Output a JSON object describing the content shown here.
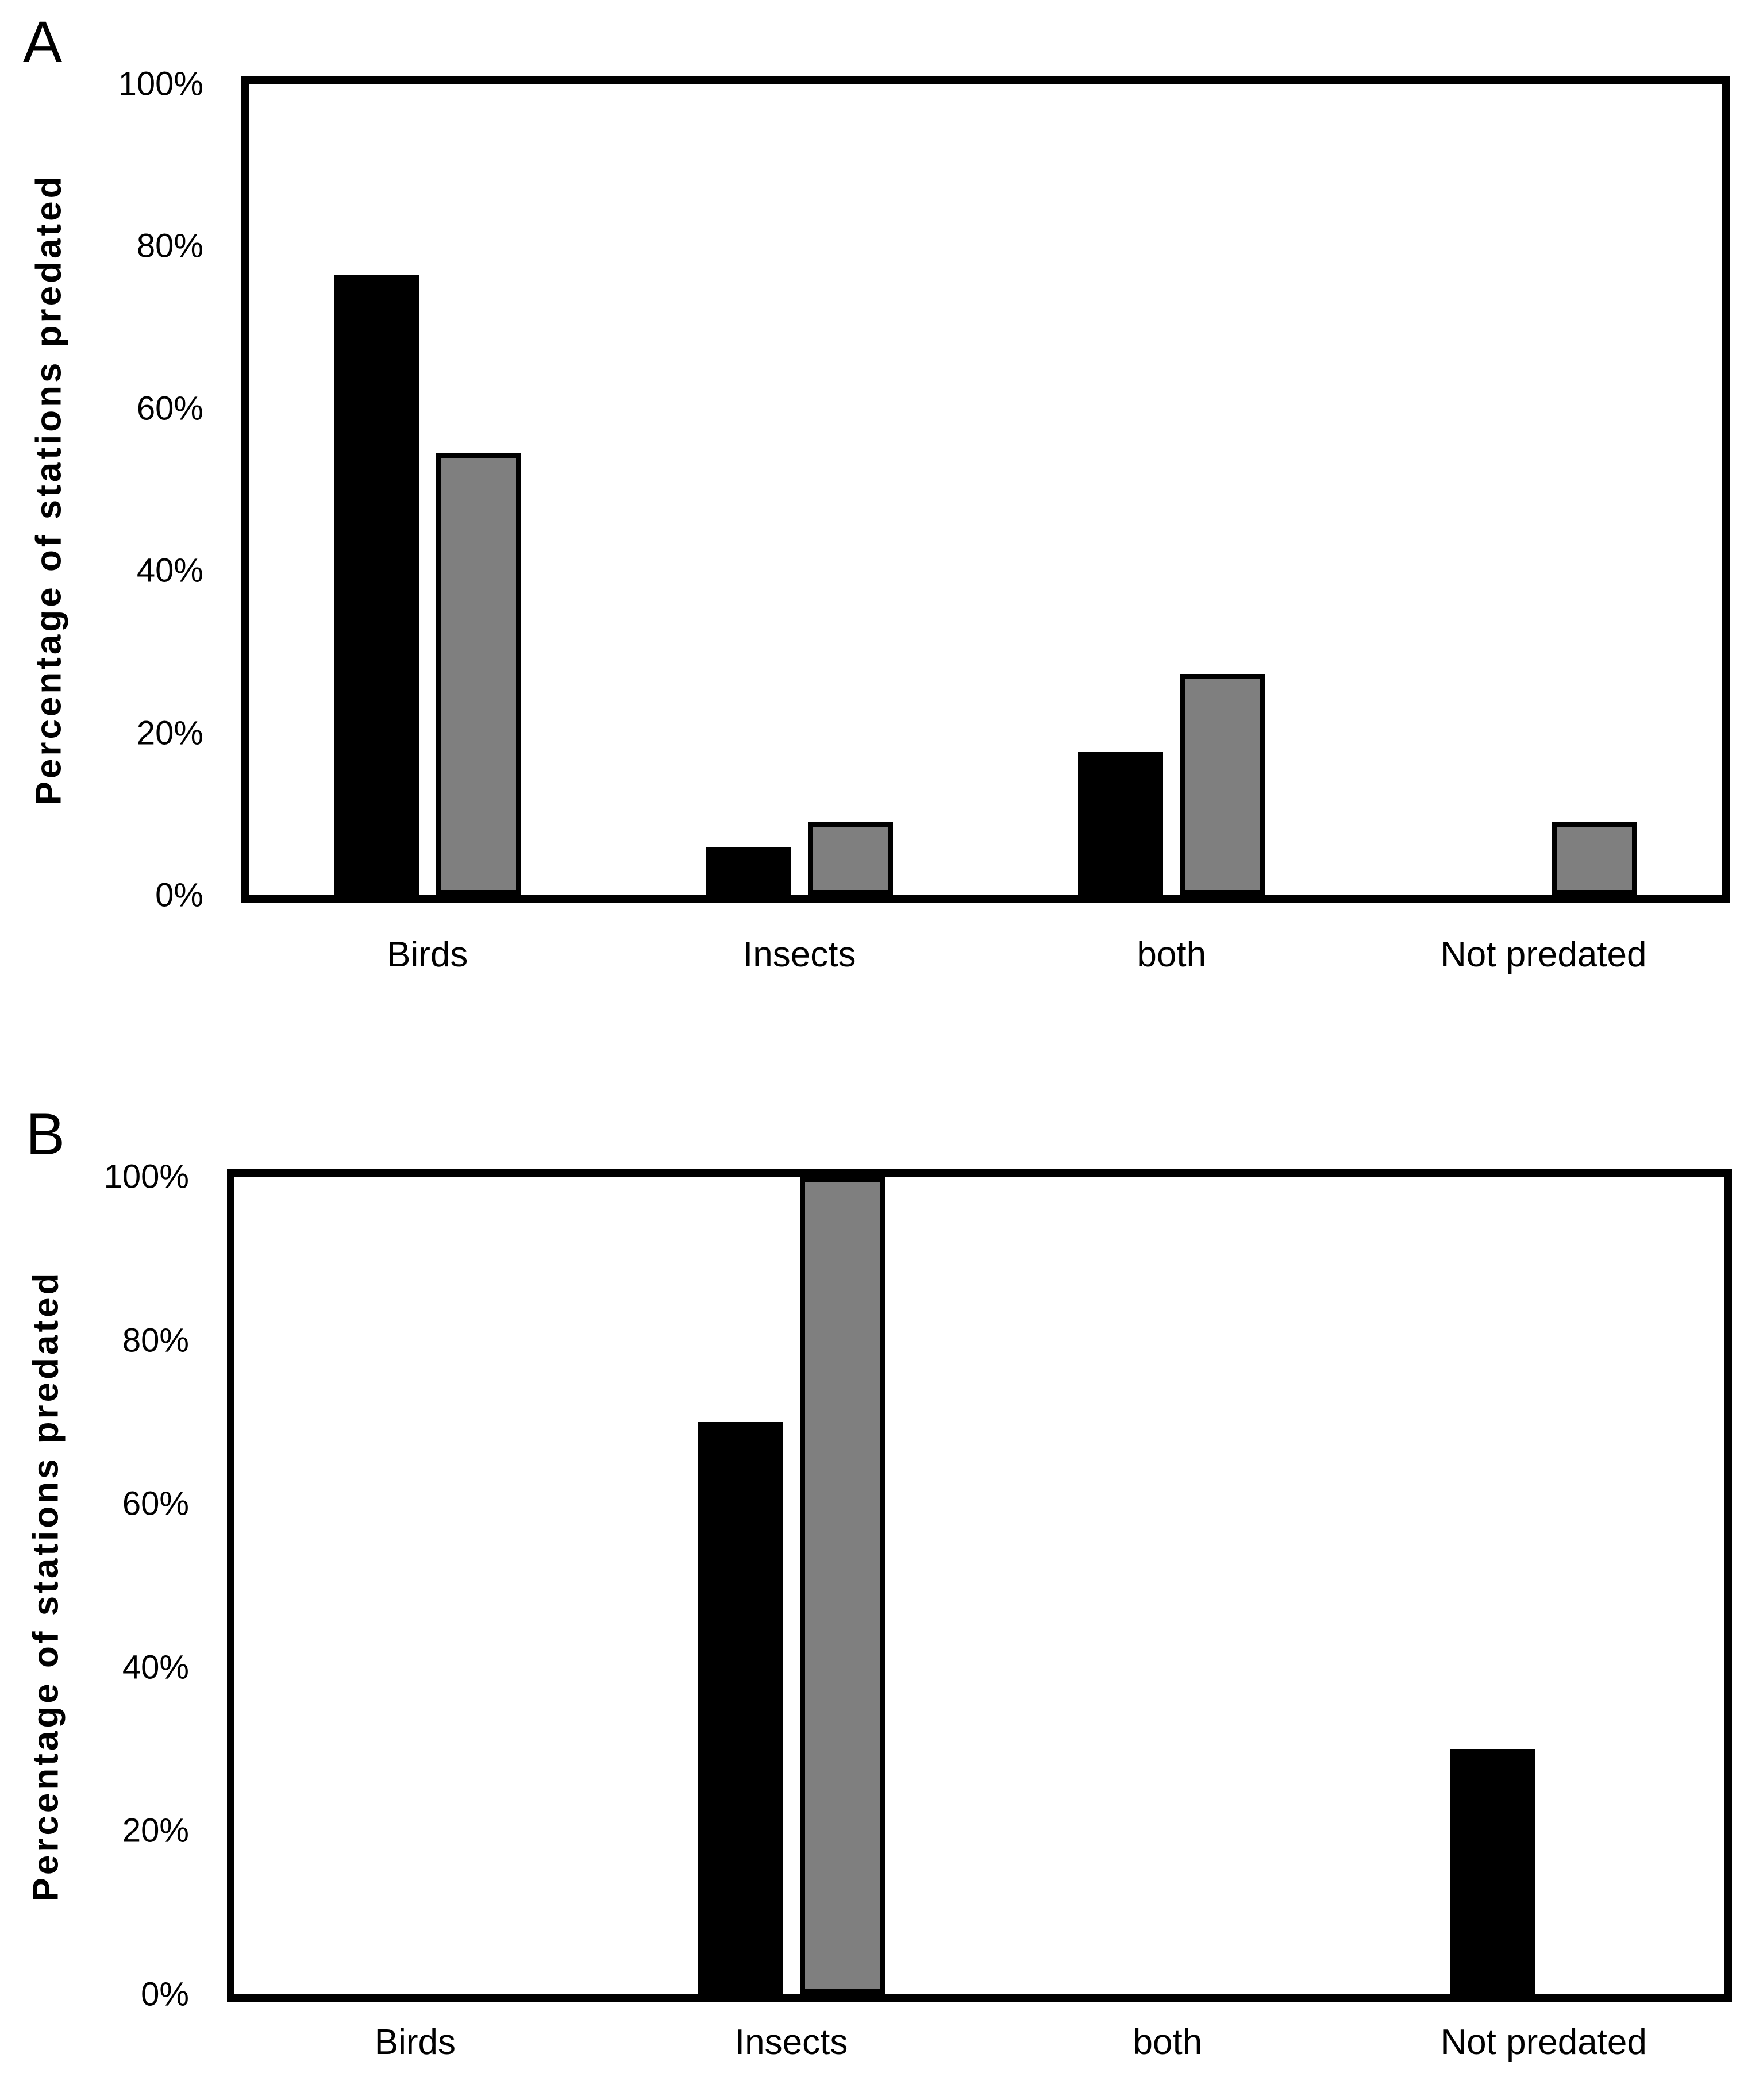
{
  "chart_data": [
    {
      "type": "bar",
      "panel_label": "A",
      "ylabel": "Percentage of stations predated",
      "xlabel": "",
      "ylim": [
        0,
        100
      ],
      "grid": false,
      "legend_position": "none",
      "y_tick_labels": [
        "100%",
        "80%",
        "60%",
        "40%",
        "20%",
        "0%"
      ],
      "categories": [
        "Birds",
        "Insects",
        "both",
        "Not predated"
      ],
      "series": [
        {
          "name": "black",
          "color": "#000000",
          "values": [
            76.5,
            5.9,
            17.6,
            0
          ]
        },
        {
          "name": "grey",
          "color": "#7f7f7f",
          "values": [
            54.5,
            9.1,
            27.3,
            9.1
          ]
        }
      ]
    },
    {
      "type": "bar",
      "panel_label": "B",
      "ylabel": "Percentage of stations predated",
      "xlabel": "",
      "ylim": [
        0,
        100
      ],
      "grid": false,
      "legend_position": "none",
      "y_tick_labels": [
        "100%",
        "80%",
        "60%",
        "40%",
        "20%",
        "0%"
      ],
      "categories": [
        "Birds",
        "Insects",
        "both",
        "Not predated"
      ],
      "series": [
        {
          "name": "black",
          "color": "#000000",
          "values": [
            0,
            70,
            0,
            30
          ]
        },
        {
          "name": "grey",
          "color": "#7f7f7f",
          "values": [
            0,
            100,
            0,
            0
          ]
        }
      ]
    }
  ]
}
